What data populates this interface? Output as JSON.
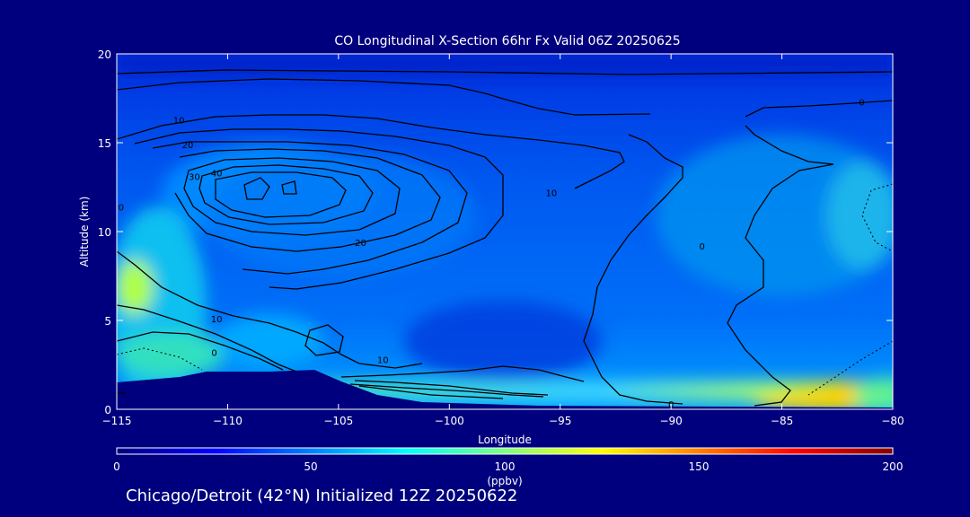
{
  "chart_data": {
    "type": "heatmap",
    "title": "CO Longitudinal X-Section 66hr  Fx Valid 06Z 20250625",
    "xlabel": "Longitude",
    "ylabel": "Altitude (km)",
    "xlim": [
      -115,
      -80
    ],
    "ylim": [
      0,
      20
    ],
    "x_ticks": [
      -115,
      -110,
      -105,
      -100,
      -95,
      -90,
      -85,
      -80
    ],
    "x_tick_labels": [
      "−115",
      "−110",
      "−105",
      "−100",
      "−95",
      "−90",
      "−85",
      "−80"
    ],
    "y_ticks": [
      0,
      5,
      10,
      15,
      20
    ],
    "y_tick_labels": [
      "0",
      "5",
      "10",
      "15",
      "20"
    ],
    "contour_labels": [
      {
        "text": "10",
        "lon": -112.2,
        "lat": 16.3
      },
      {
        "text": "20",
        "lon": -111.8,
        "lat": 14.9
      },
      {
        "text": "30",
        "lon": -111.5,
        "lat": 13.1
      },
      {
        "text": "40",
        "lon": -110.5,
        "lat": 13.3
      },
      {
        "text": "0",
        "lon": -114.8,
        "lat": 11.4
      },
      {
        "text": "20",
        "lon": -104.0,
        "lat": 9.4
      },
      {
        "text": "10",
        "lon": -110.5,
        "lat": 5.1
      },
      {
        "text": "0",
        "lon": -110.6,
        "lat": 3.2
      },
      {
        "text": "10",
        "lon": -103.0,
        "lat": 2.8
      },
      {
        "text": "10",
        "lon": -95.4,
        "lat": 12.2
      },
      {
        "text": "0",
        "lon": -88.6,
        "lat": 9.2
      },
      {
        "text": "0",
        "lon": -81.4,
        "lat": 17.3
      },
      {
        "text": "0",
        "lon": -90.0,
        "lat": 0.3
      }
    ],
    "colorbar": {
      "min": 0,
      "max": 200,
      "ticks": [
        0,
        50,
        100,
        150,
        200
      ],
      "tick_labels": [
        "0",
        "50",
        "100",
        "150",
        "200"
      ],
      "unit_label": "(ppbv)",
      "colors": [
        "#00007f",
        "#0000ff",
        "#0080ff",
        "#00ffff",
        "#80ff80",
        "#ffff00",
        "#ff8000",
        "#ff0000",
        "#7f0000"
      ]
    }
  },
  "footer": "Chicago/Detroit (42°N) Initialized 12Z 20250622"
}
